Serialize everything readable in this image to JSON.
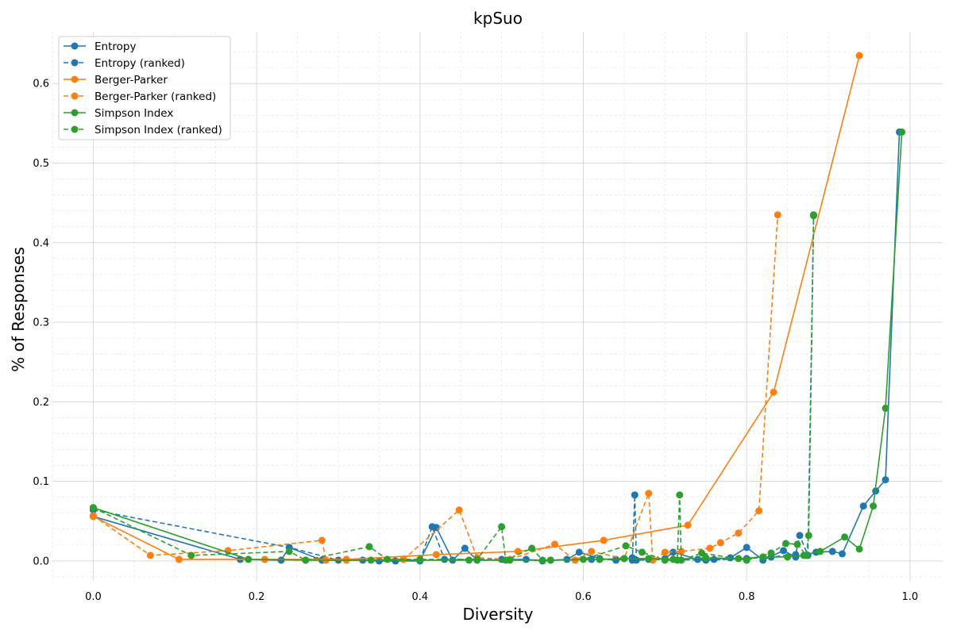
{
  "chart_data": {
    "type": "line",
    "title": "kpSuo",
    "xlabel": "Diversity",
    "ylabel": "% of Responses",
    "xlim": [
      -0.05,
      1.04
    ],
    "ylim": [
      -0.025,
      0.665
    ],
    "xticks": [
      0.0,
      0.2,
      0.4,
      0.6,
      0.8,
      1.0
    ],
    "xtick_labels": [
      "0.0",
      "0.2",
      "0.4",
      "0.6",
      "0.8",
      "1.0"
    ],
    "yticks": [
      0.0,
      0.1,
      0.2,
      0.3,
      0.4,
      0.5,
      0.6
    ],
    "ytick_labels": [
      "0.0",
      "0.1",
      "0.2",
      "0.3",
      "0.4",
      "0.5",
      "0.6"
    ],
    "grid": true,
    "legend_position": "top-left",
    "colors": {
      "blue": "#1f77b4",
      "orange": "#ff7f0e",
      "green": "#2ca02c"
    },
    "series": [
      {
        "name": "Entropy",
        "color": "#1f77b4",
        "dash": "solid",
        "x": [
          0.0,
          0.18,
          0.23,
          0.24,
          0.28,
          0.33,
          0.35,
          0.37,
          0.4,
          0.42,
          0.44,
          0.455,
          0.47,
          0.53,
          0.55,
          0.58,
          0.595,
          0.62,
          0.64,
          0.66,
          0.68,
          0.7,
          0.71,
          0.74,
          0.76,
          0.78,
          0.8,
          0.82,
          0.845,
          0.86,
          0.885,
          0.905,
          0.917,
          0.943,
          0.958,
          0.97,
          0.987
        ],
        "y": [
          0.056,
          0.002,
          0.001,
          0.017,
          0.001,
          0.001,
          0.0,
          0.0,
          0.0,
          0.042,
          0.001,
          0.016,
          0.001,
          0.002,
          0.0,
          0.002,
          0.011,
          0.003,
          0.001,
          0.004,
          0.002,
          0.003,
          0.011,
          0.002,
          0.002,
          0.004,
          0.017,
          0.001,
          0.013,
          0.005,
          0.011,
          0.012,
          0.009,
          0.069,
          0.088,
          0.102,
          0.539
        ]
      },
      {
        "name": "Entropy (ranked)",
        "color": "#1f77b4",
        "dash": "dashed",
        "x": [
          0.0,
          0.24,
          0.3,
          0.38,
          0.4,
          0.415,
          0.43,
          0.5,
          0.56,
          0.61,
          0.64,
          0.66,
          0.663,
          0.665,
          0.7,
          0.75,
          0.8,
          0.83,
          0.86,
          0.865,
          0.875,
          0.882
        ],
        "y": [
          0.064,
          0.017,
          0.001,
          0.002,
          0.001,
          0.043,
          0.002,
          0.002,
          0.001,
          0.002,
          0.002,
          0.001,
          0.083,
          0.001,
          0.002,
          0.001,
          0.003,
          0.005,
          0.008,
          0.032,
          0.007,
          0.434
        ]
      },
      {
        "name": "Berger-Parker",
        "color": "#ff7f0e",
        "dash": "solid",
        "x": [
          0.0,
          0.105,
          0.21,
          0.31,
          0.42,
          0.52,
          0.625,
          0.728,
          0.833,
          0.938
        ],
        "y": [
          0.056,
          0.002,
          0.002,
          0.002,
          0.008,
          0.012,
          0.026,
          0.045,
          0.212,
          0.635
        ]
      },
      {
        "name": "Berger-Parker (ranked)",
        "color": "#ff7f0e",
        "dash": "dashed",
        "x": [
          0.0,
          0.07,
          0.165,
          0.28,
          0.285,
          0.31,
          0.38,
          0.448,
          0.47,
          0.51,
          0.565,
          0.59,
          0.61,
          0.65,
          0.68,
          0.685,
          0.7,
          0.72,
          0.755,
          0.768,
          0.79,
          0.815,
          0.838
        ],
        "y": [
          0.057,
          0.007,
          0.013,
          0.026,
          0.001,
          0.001,
          0.002,
          0.064,
          0.004,
          0.002,
          0.021,
          0.001,
          0.012,
          0.003,
          0.085,
          0.001,
          0.011,
          0.012,
          0.016,
          0.023,
          0.035,
          0.063,
          0.435
        ]
      },
      {
        "name": "Simpson Index",
        "color": "#2ca02c",
        "dash": "solid",
        "x": [
          0.0,
          0.19,
          0.26,
          0.34,
          0.4,
          0.46,
          0.51,
          0.56,
          0.62,
          0.65,
          0.68,
          0.71,
          0.75,
          0.79,
          0.82,
          0.85,
          0.87,
          0.89,
          0.92,
          0.938,
          0.955,
          0.97,
          0.99
        ],
        "y": [
          0.067,
          0.002,
          0.001,
          0.001,
          0.001,
          0.001,
          0.001,
          0.001,
          0.002,
          0.003,
          0.003,
          0.002,
          0.004,
          0.003,
          0.005,
          0.005,
          0.007,
          0.012,
          0.03,
          0.015,
          0.069,
          0.192,
          0.539
        ]
      },
      {
        "name": "Simpson Index (ranked)",
        "color": "#2ca02c",
        "dash": "dashed",
        "x": [
          0.0,
          0.12,
          0.24,
          0.26,
          0.338,
          0.36,
          0.4,
          0.47,
          0.5,
          0.505,
          0.537,
          0.55,
          0.6,
          0.652,
          0.672,
          0.7,
          0.715,
          0.718,
          0.72,
          0.745,
          0.8,
          0.83,
          0.848,
          0.862,
          0.873,
          0.876,
          0.882
        ],
        "y": [
          0.067,
          0.007,
          0.012,
          0.001,
          0.018,
          0.002,
          0.002,
          0.002,
          0.043,
          0.001,
          0.016,
          0.001,
          0.002,
          0.019,
          0.011,
          0.001,
          0.001,
          0.083,
          0.001,
          0.01,
          0.001,
          0.01,
          0.022,
          0.021,
          0.007,
          0.032,
          0.435
        ]
      }
    ]
  }
}
